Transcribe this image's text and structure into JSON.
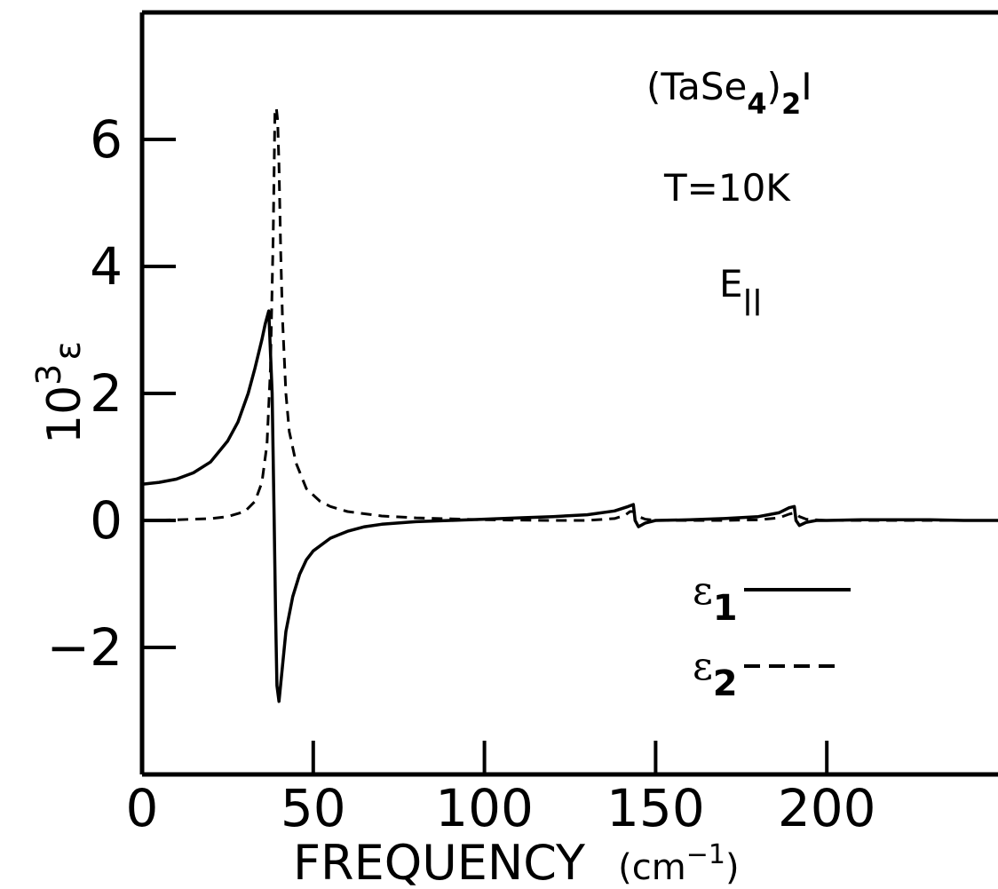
{
  "chart_data": {
    "type": "line",
    "xlabel": "FREQUENCY",
    "xlabel_unit": "(cm",
    "xlabel_unit_sup": "−1",
    "xlabel_unit_close": ")",
    "ylabel": "10",
    "ylabel_sup": "3",
    "ylabel_sym": "ε",
    "xlim": [
      0,
      250
    ],
    "ylim": [
      -4,
      8
    ],
    "x_ticks": [
      0,
      50,
      100,
      150,
      200
    ],
    "x_tick_labels": [
      "0",
      "50",
      "100",
      "150",
      "200"
    ],
    "y_ticks": [
      -2,
      0,
      2,
      4,
      6
    ],
    "y_tick_labels": [
      "−2",
      "0",
      "2",
      "4",
      "6"
    ],
    "grid": false,
    "annotations": {
      "compound_a": "(TaSe",
      "compound_sub1": "4",
      "compound_b": ")",
      "compound_sub2": "2",
      "compound_c": "I",
      "temperature": "T=10K",
      "field": "E",
      "field_sub": "||"
    },
    "legend": {
      "placement": "bottom-right",
      "entries": [
        {
          "symbol": "ε",
          "sub": "1",
          "style": "solid"
        },
        {
          "symbol": "ε",
          "sub": "2",
          "style": "dashed"
        }
      ]
    },
    "series": [
      {
        "style": "solid",
        "x": [
          0,
          5,
          10,
          15,
          20,
          25,
          28,
          31,
          33,
          35,
          36,
          37,
          38,
          38.6,
          39.0,
          39.4,
          40,
          41,
          42,
          44,
          46,
          48,
          50,
          55,
          60,
          65,
          70,
          80,
          90,
          100,
          110,
          120,
          130,
          138,
          142,
          143.5,
          144,
          145,
          147,
          150,
          160,
          170,
          180,
          186,
          189,
          190.5,
          191,
          192,
          194,
          197,
          200,
          210,
          220,
          230,
          240,
          250
        ],
        "y": [
          0.57,
          0.6,
          0.65,
          0.75,
          0.92,
          1.25,
          1.55,
          2.0,
          2.4,
          2.85,
          3.1,
          3.3,
          2.0,
          0.0,
          -1.5,
          -2.6,
          -2.85,
          -2.3,
          -1.75,
          -1.2,
          -0.85,
          -0.62,
          -0.48,
          -0.28,
          -0.17,
          -0.1,
          -0.06,
          -0.02,
          0.0,
          0.02,
          0.04,
          0.06,
          0.09,
          0.15,
          0.22,
          0.25,
          0.0,
          -0.1,
          -0.04,
          0.0,
          0.01,
          0.03,
          0.06,
          0.12,
          0.2,
          0.22,
          0.0,
          -0.08,
          -0.03,
          0.0,
          0.0,
          0.01,
          0.01,
          0.01,
          0.0,
          0.0
        ]
      },
      {
        "style": "dashed",
        "x": [
          0,
          10,
          20,
          25,
          30,
          33,
          35,
          36.5,
          37.5,
          38.3,
          38.8,
          39.2,
          39.6,
          40,
          40.5,
          41,
          42,
          43,
          45,
          48,
          52,
          55,
          60,
          70,
          80,
          100,
          120,
          130,
          138,
          141,
          142.5,
          143.5,
          145,
          147,
          150,
          170,
          180,
          186,
          189,
          190.5,
          192,
          194,
          200,
          220,
          250
        ],
        "y": [
          0.0,
          0.01,
          0.03,
          0.06,
          0.14,
          0.3,
          0.6,
          1.2,
          2.4,
          4.5,
          6.4,
          6.5,
          6.3,
          5.6,
          4.2,
          3.2,
          2.0,
          1.4,
          0.9,
          0.5,
          0.3,
          0.22,
          0.14,
          0.07,
          0.04,
          0.01,
          0.0,
          0.0,
          0.03,
          0.08,
          0.14,
          0.14,
          0.06,
          0.02,
          0.0,
          0.0,
          0.01,
          0.04,
          0.1,
          0.12,
          0.06,
          0.02,
          0.0,
          0.0,
          0.0
        ]
      }
    ]
  }
}
